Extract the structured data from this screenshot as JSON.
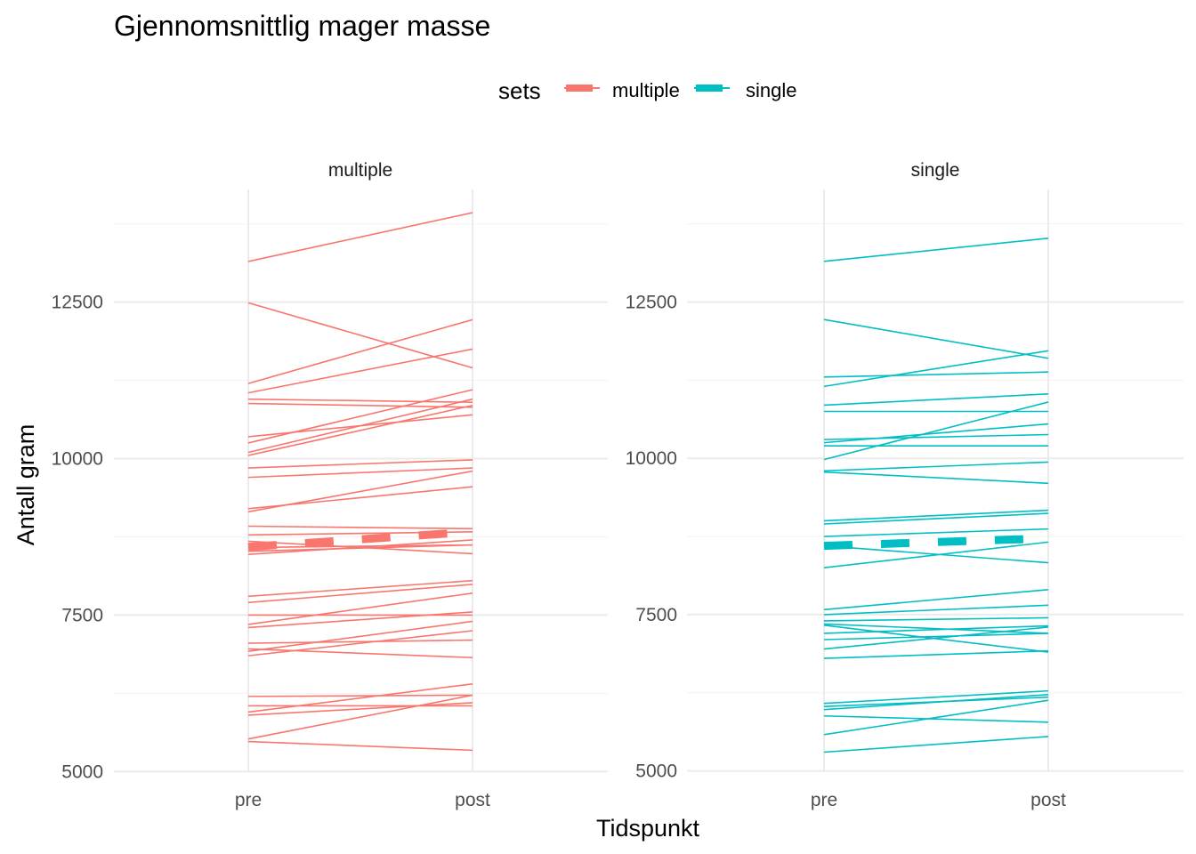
{
  "chart_data": {
    "type": "line",
    "title": "Gjennomsnittlig mager masse",
    "xlabel": "Tidspunkt",
    "ylabel": "Antall gram",
    "legend": {
      "title": "sets",
      "position": "top",
      "entries": [
        {
          "name": "multiple",
          "color": "#F8766D"
        },
        {
          "name": "single",
          "color": "#00BFC4"
        }
      ]
    },
    "categories": [
      "pre",
      "post"
    ],
    "grid": true,
    "panels": [
      {
        "strip": "multiple",
        "color": "#F8766D",
        "ylim": [
          4990,
          14300
        ],
        "yticks": [
          5000,
          7500,
          10000,
          12500
        ],
        "mean": [
          8590,
          8830
        ],
        "subjects": [
          [
            13150,
            13930
          ],
          [
            12490,
            11450
          ],
          [
            11200,
            12220
          ],
          [
            11050,
            11750
          ],
          [
            10950,
            10900
          ],
          [
            10880,
            10820
          ],
          [
            10350,
            10700
          ],
          [
            10250,
            11100
          ],
          [
            10100,
            10950
          ],
          [
            10050,
            10850
          ],
          [
            9850,
            9980
          ],
          [
            9700,
            9850
          ],
          [
            9200,
            9550
          ],
          [
            9150,
            9800
          ],
          [
            8920,
            8880
          ],
          [
            8780,
            8830
          ],
          [
            8680,
            8480
          ],
          [
            8580,
            8620
          ],
          [
            8520,
            8620
          ],
          [
            8470,
            8700
          ],
          [
            7800,
            8050
          ],
          [
            7700,
            7990
          ],
          [
            7500,
            7500
          ],
          [
            7350,
            7850
          ],
          [
            7300,
            7550
          ],
          [
            7050,
            7100
          ],
          [
            6960,
            6820
          ],
          [
            6920,
            7400
          ],
          [
            6850,
            7250
          ],
          [
            6200,
            6220
          ],
          [
            6050,
            6050
          ],
          [
            5950,
            6400
          ],
          [
            5900,
            6100
          ],
          [
            5520,
            6220
          ],
          [
            5480,
            5340
          ]
        ]
      },
      {
        "strip": "single",
        "color": "#00BFC4",
        "ylim": [
          4980,
          14300
        ],
        "yticks": [
          5000,
          7500,
          10000,
          12500
        ],
        "mean": [
          8600,
          8720
        ],
        "subjects": [
          [
            13150,
            13520
          ],
          [
            12220,
            11600
          ],
          [
            11300,
            11380
          ],
          [
            11150,
            11720
          ],
          [
            10850,
            11030
          ],
          [
            10750,
            10750
          ],
          [
            10300,
            10380
          ],
          [
            10250,
            10550
          ],
          [
            10200,
            10200
          ],
          [
            9980,
            10900
          ],
          [
            9800,
            9940
          ],
          [
            9780,
            9600
          ],
          [
            9000,
            9170
          ],
          [
            8950,
            9120
          ],
          [
            8750,
            8870
          ],
          [
            8600,
            8330
          ],
          [
            8250,
            8660
          ],
          [
            7580,
            7900
          ],
          [
            7500,
            7650
          ],
          [
            7400,
            7450
          ],
          [
            7350,
            7200
          ],
          [
            7330,
            6900
          ],
          [
            7200,
            7320
          ],
          [
            7100,
            7200
          ],
          [
            6950,
            7300
          ],
          [
            6800,
            6920
          ],
          [
            6080,
            6280
          ],
          [
            6030,
            6180
          ],
          [
            5980,
            6220
          ],
          [
            5580,
            6130
          ],
          [
            5880,
            5780
          ],
          [
            5300,
            5550
          ]
        ]
      }
    ]
  }
}
